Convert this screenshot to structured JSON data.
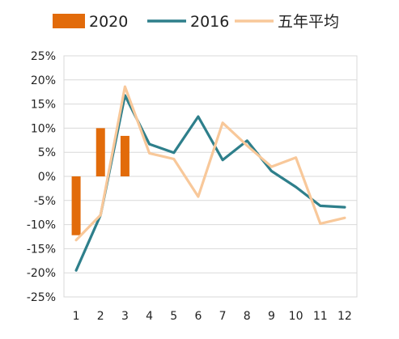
{
  "chart_data": {
    "type": "bar+line",
    "categories": [
      "1",
      "2",
      "3",
      "4",
      "5",
      "6",
      "7",
      "8",
      "9",
      "10",
      "11",
      "12"
    ],
    "ylim": [
      -25,
      25
    ],
    "ytick_step": 5,
    "ytick_labels": [
      "25%",
      "20%",
      "15%",
      "10%",
      "5%",
      "0%",
      "-5%",
      "-10%",
      "-15%",
      "-20%",
      "-25%"
    ],
    "grid": true,
    "legend_position": "top",
    "series": [
      {
        "name": "2020",
        "type": "bar",
        "color": "#E26B0A",
        "values": [
          -12.2,
          10.0,
          8.4,
          null,
          null,
          null,
          null,
          null,
          null,
          null,
          null,
          null
        ]
      },
      {
        "name": "2016",
        "type": "line",
        "color": "#2E7F8B",
        "values": [
          -19.5,
          -8.0,
          16.8,
          6.7,
          4.9,
          12.4,
          3.4,
          7.4,
          1.1,
          -2.2,
          -6.1,
          -6.4
        ]
      },
      {
        "name": "五年平均",
        "type": "line",
        "color": "#F8C89A",
        "values": [
          -13.2,
          -8.0,
          18.6,
          4.8,
          3.6,
          -4.2,
          11.1,
          6.4,
          2.0,
          3.9,
          -9.8,
          -8.6
        ]
      }
    ]
  }
}
